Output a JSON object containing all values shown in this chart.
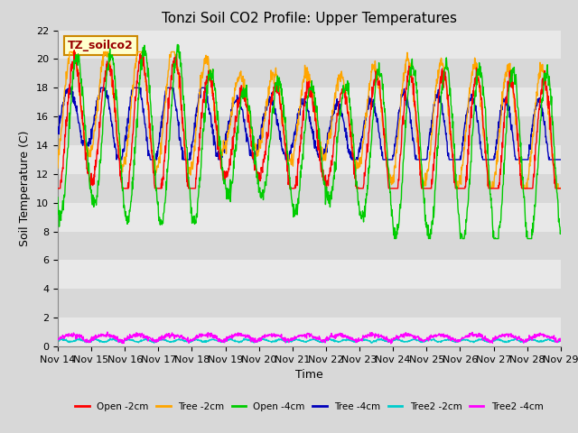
{
  "title": "Tonzi Soil CO2 Profile: Upper Temperatures",
  "xlabel": "Time",
  "ylabel": "Soil Temperature (C)",
  "ylim": [
    0,
    22
  ],
  "yticks": [
    0,
    2,
    4,
    6,
    8,
    10,
    12,
    14,
    16,
    18,
    20,
    22
  ],
  "x_labels": [
    "Nov 14",
    "Nov 15",
    "Nov 16",
    "Nov 17",
    "Nov 18",
    "Nov 19",
    "Nov 20",
    "Nov 21",
    "Nov 22",
    "Nov 23",
    "Nov 24",
    "Nov 25",
    "Nov 26",
    "Nov 27",
    "Nov 28",
    "Nov 29"
  ],
  "legend_label": "TZ_soilco2",
  "legend_entries": [
    "Open -2cm",
    "Tree -2cm",
    "Open -4cm",
    "Tree -4cm",
    "Tree2 -2cm",
    "Tree2 -4cm"
  ],
  "line_colors": [
    "#FF0000",
    "#FFA500",
    "#00CC00",
    "#0000BB",
    "#00CCCC",
    "#FF00FF"
  ],
  "band_colors": [
    "#DCDCDC",
    "#C8C8C8"
  ],
  "title_fontsize": 11,
  "axis_fontsize": 9,
  "tick_fontsize": 8
}
